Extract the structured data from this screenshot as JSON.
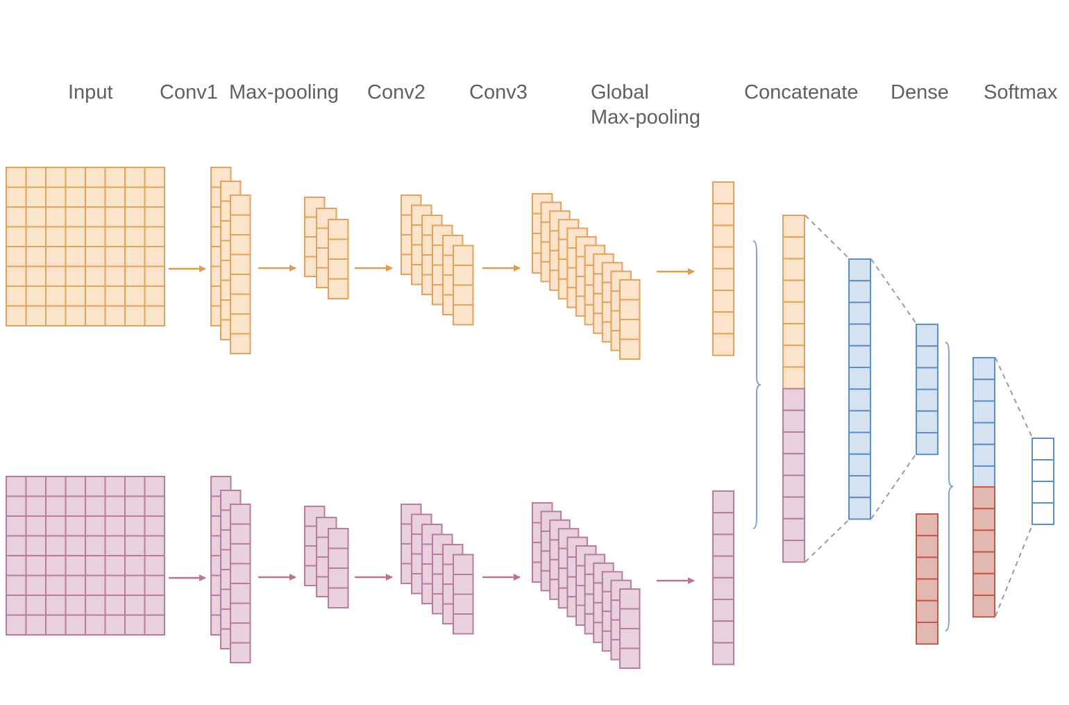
{
  "labels": {
    "input": "Input",
    "conv1": "Conv1",
    "maxpool": "Max-pooling",
    "conv2": "Conv2",
    "conv3": "Conv3",
    "global_line1": "Global",
    "global_line2": "Max-pooling",
    "concatenate": "Concatenate",
    "dense": "Dense",
    "softmax": "Softmax"
  },
  "colors": {
    "orange_fill": "#fbe3cc",
    "orange_stroke": "#e3a25c",
    "orange_arrow": "#df9a4e",
    "pink_fill": "#e8d0dc",
    "pink_stroke": "#b77aa0",
    "pink_arrow": "#b9739b",
    "blue_fill": "#d4e2f2",
    "blue_stroke": "#5b8fc7",
    "red_fill": "#e2b9b0",
    "red_stroke": "#c25845",
    "white_fill": "#ffffff",
    "dash": "#9a9a9a",
    "brace": "#7aa5d6",
    "text": "#5f5f5f"
  }
}
